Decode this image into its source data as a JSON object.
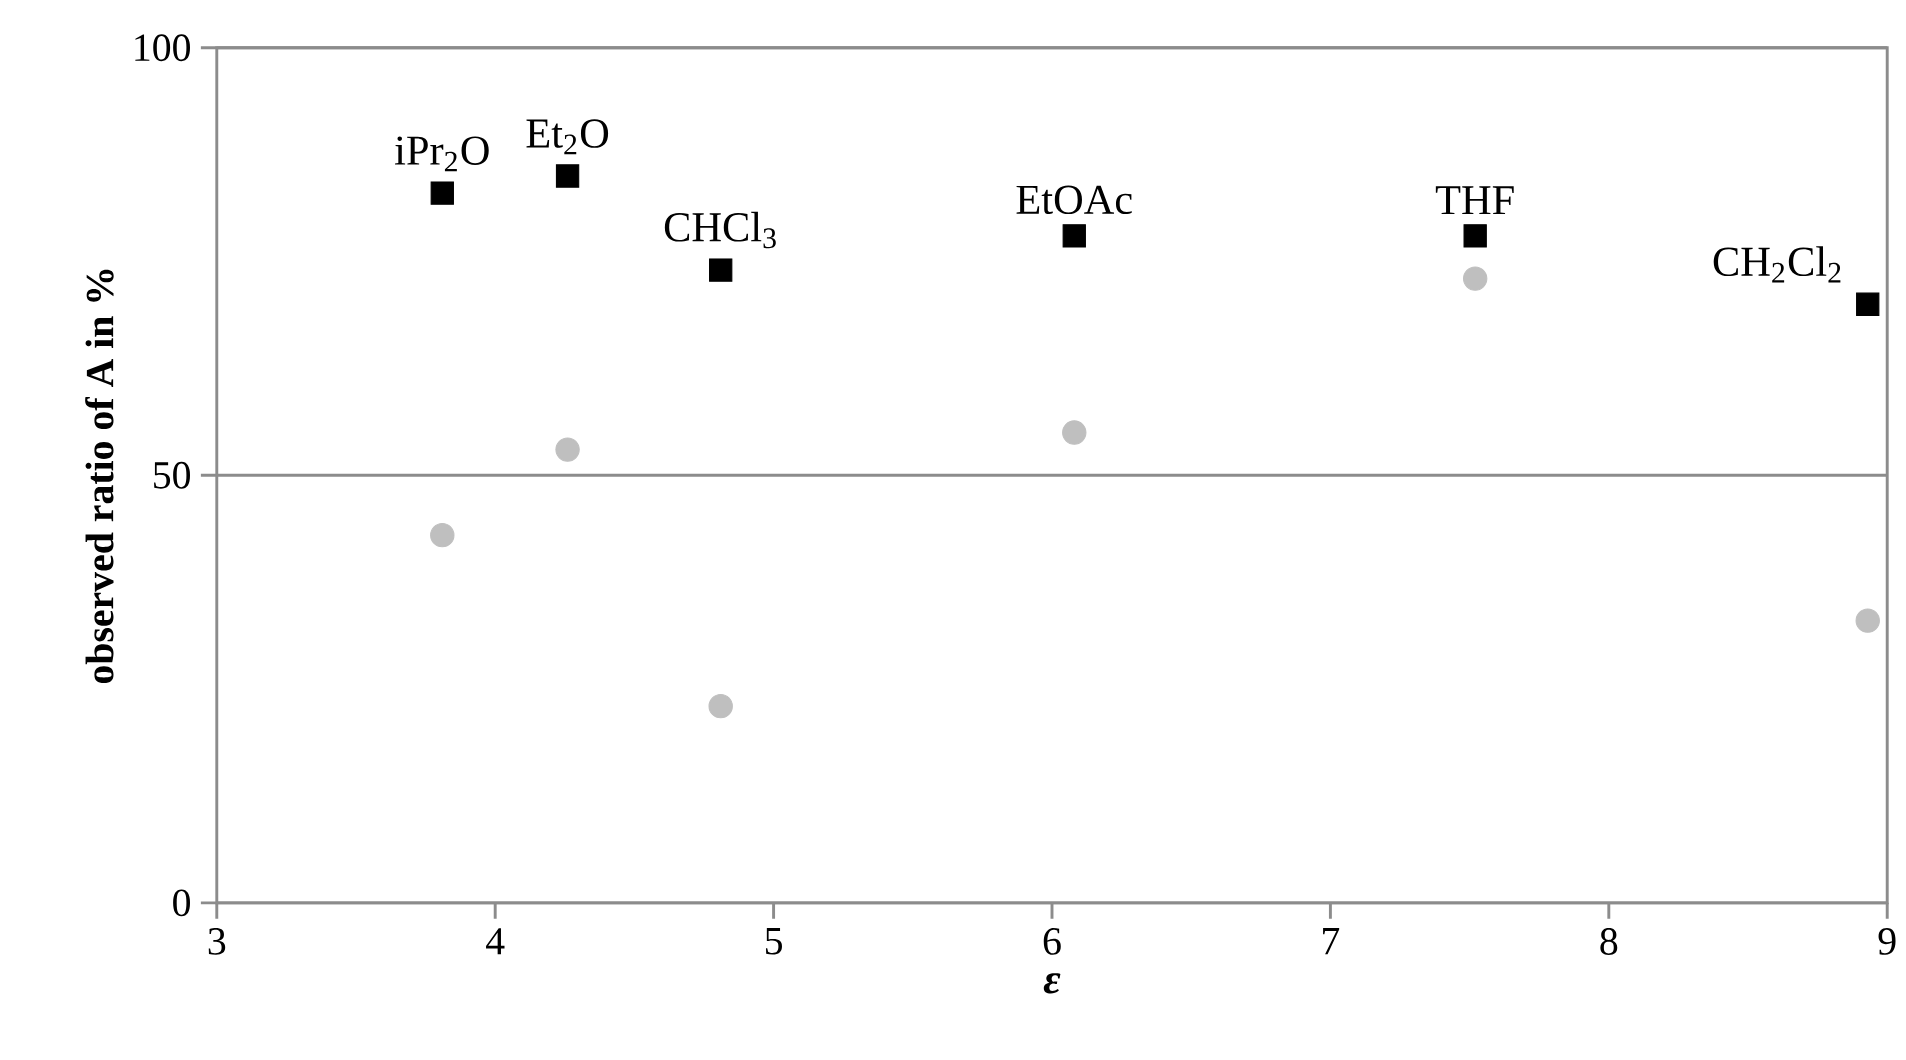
{
  "chart_data": {
    "type": "scatter",
    "xlabel": "ε",
    "ylabel": "observed ratio of A in %",
    "xlim": [
      3,
      9
    ],
    "ylim": [
      0,
      100
    ],
    "xticks": [
      3,
      4,
      5,
      6,
      7,
      8,
      9
    ],
    "yticks": [
      0,
      50,
      100
    ],
    "grid": "y",
    "series": [
      {
        "color": "#000000",
        "marker": "square",
        "x": [
          3.81,
          4.26,
          4.81,
          6.08,
          7.52,
          8.93
        ],
        "values": [
          83,
          85,
          74,
          78,
          78,
          70
        ]
      },
      {
        "color": "#bfbfbf",
        "marker": "circle",
        "x": [
          3.81,
          4.26,
          4.81,
          6.08,
          7.52,
          8.93
        ],
        "values": [
          43,
          53,
          23,
          55,
          73,
          33
        ]
      }
    ],
    "annotations": [
      {
        "text": "iPr$_{2}$O",
        "x": 3.81,
        "y": 83
      },
      {
        "text": "Et$_{2}$O",
        "x": 4.26,
        "y": 85
      },
      {
        "text": "CHCl$_{3}$",
        "x": 4.81,
        "y": 74
      },
      {
        "text": "EtOAc",
        "x": 6.08,
        "y": 78
      },
      {
        "text": "THF",
        "x": 7.52,
        "y": 78
      },
      {
        "text": "CH$_{2}$Cl$_{2}$",
        "x": 8.93,
        "y": 70
      }
    ]
  }
}
